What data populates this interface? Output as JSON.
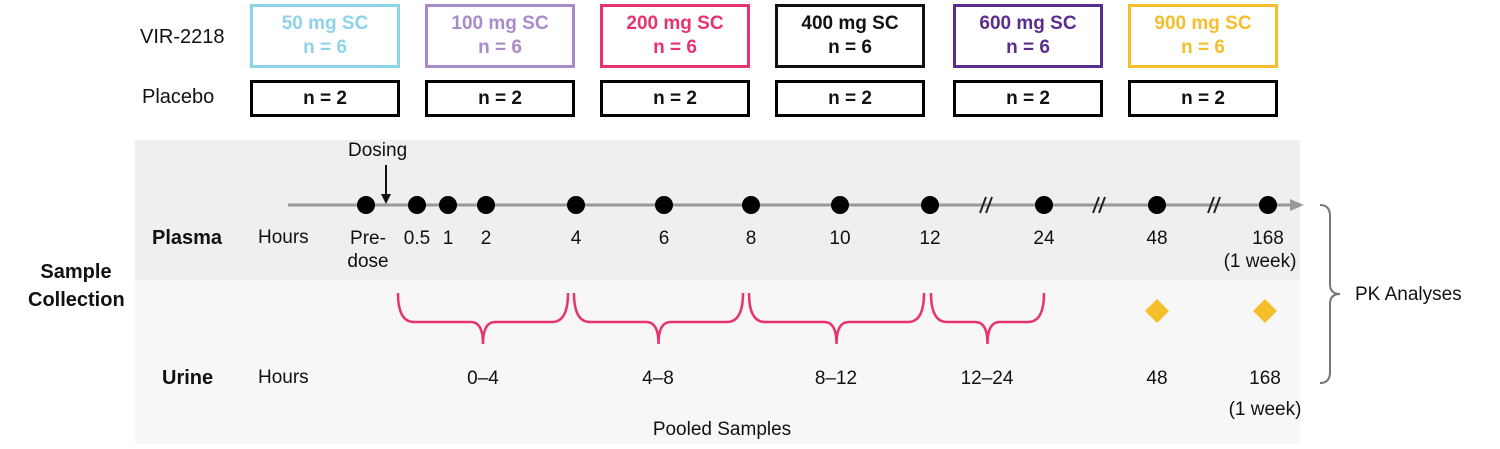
{
  "groups": {
    "active_label": "VIR-2218",
    "placebo_label": "Placebo",
    "cohorts": [
      {
        "dose": "50 mg SC",
        "n_active": "n = 6",
        "n_placebo": "n = 2",
        "color": "#8dd3ea"
      },
      {
        "dose": "100 mg SC",
        "n_active": "n = 6",
        "n_placebo": "n = 2",
        "color": "#a98bcb"
      },
      {
        "dose": "200 mg SC",
        "n_active": "n = 6",
        "n_placebo": "n = 2",
        "color": "#e8336f"
      },
      {
        "dose": "400 mg SC",
        "n_active": "n = 6",
        "n_placebo": "n = 2",
        "color": "#111111"
      },
      {
        "dose": "600 mg SC",
        "n_active": "n = 6",
        "n_placebo": "n = 2",
        "color": "#5b2d90"
      },
      {
        "dose": "900 mg SC",
        "n_active": "n = 6",
        "n_placebo": "n = 2",
        "color": "#f5bf2c"
      }
    ]
  },
  "collection": {
    "title_line1": "Sample",
    "title_line2": "Collection",
    "dosing_label": "Dosing",
    "plasma": {
      "label": "Plasma",
      "unit": "Hours",
      "timepoints": [
        "Pre-",
        "0.5",
        "1",
        "2",
        "4",
        "6",
        "8",
        "10",
        "12",
        "24",
        "48",
        "168"
      ],
      "predose_line2": "dose",
      "week_note": "(1 week)"
    },
    "urine": {
      "label": "Urine",
      "unit": "Hours",
      "intervals": [
        "0–4",
        "4–8",
        "8–12",
        "12–24",
        "48",
        "168"
      ],
      "week_note": "(1 week)",
      "pooled_label": "Pooled Samples"
    },
    "pk_label": "PK Analyses",
    "colors": {
      "bracket": "#e8336f",
      "diamond": "#f5bf2c",
      "axis": "#999999",
      "plasma_bg": "#efefef",
      "urine_bg": "#f7f7f7"
    }
  }
}
